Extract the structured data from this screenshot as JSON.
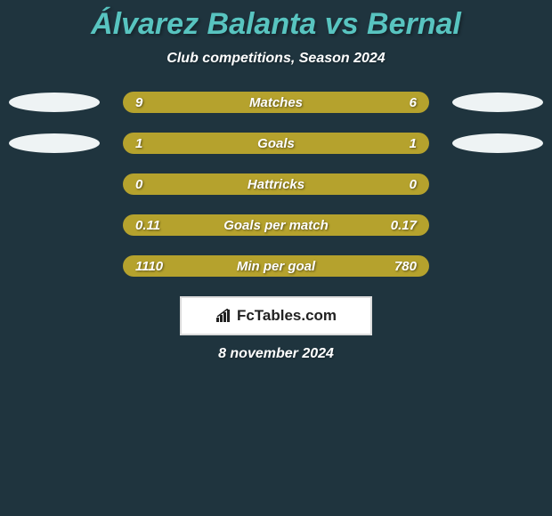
{
  "title": "Álvarez Balanta vs Bernal",
  "subtitle": "Club competitions, Season 2024",
  "date": "8 november 2024",
  "brand": "FcTables.com",
  "colors": {
    "background": "#1f343e",
    "title_color": "#58c4c0",
    "subtitle_color": "#ffffff",
    "bar_color": "#b5a22d",
    "ellipse_color": "#eef3f4",
    "brand_border": "#dcdcdc"
  },
  "stats": [
    {
      "label": "Matches",
      "left_value": "9",
      "right_value": "6",
      "show_left_ellipse": true,
      "show_right_ellipse": true
    },
    {
      "label": "Goals",
      "left_value": "1",
      "right_value": "1",
      "show_left_ellipse": true,
      "show_right_ellipse": true
    },
    {
      "label": "Hattricks",
      "left_value": "0",
      "right_value": "0",
      "show_left_ellipse": false,
      "show_right_ellipse": false
    },
    {
      "label": "Goals per match",
      "left_value": "0.11",
      "right_value": "0.17",
      "show_left_ellipse": false,
      "show_right_ellipse": false
    },
    {
      "label": "Min per goal",
      "left_value": "1110",
      "right_value": "780",
      "show_left_ellipse": false,
      "show_right_ellipse": false
    }
  ]
}
